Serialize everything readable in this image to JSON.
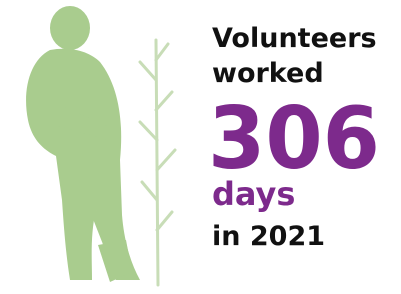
{
  "headline": {
    "line1": "Volunteers",
    "line2": "worked",
    "number": 306,
    "unit": "days",
    "period": "in 2021"
  }
}
